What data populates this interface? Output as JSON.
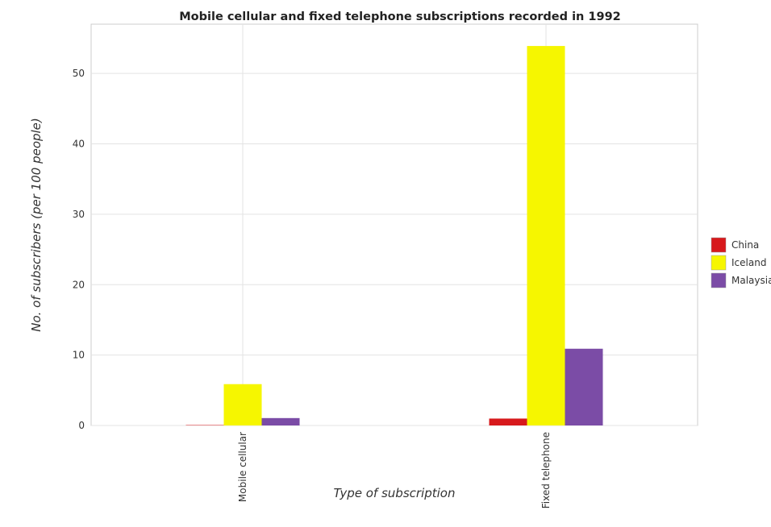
{
  "chart_data": {
    "type": "bar",
    "title": "Mobile cellular and fixed telephone subscriptions recorded in 1992",
    "xlabel": "Type of subscription",
    "ylabel": "No. of subscribers (per 100 people)",
    "categories": [
      "Mobile cellular",
      "Fixed telephone"
    ],
    "series": [
      {
        "name": "China",
        "color": "#d7191c",
        "values": [
          0.02,
          0.98
        ]
      },
      {
        "name": "Iceland",
        "color": "#f6f600",
        "values": [
          5.87,
          53.9
        ]
      },
      {
        "name": "Malaysia",
        "color": "#7b4ca6",
        "values": [
          1.05,
          10.9
        ]
      }
    ],
    "ylim": [
      0,
      57
    ],
    "yticks": [
      0,
      10,
      20,
      30,
      40,
      50
    ],
    "grid": true,
    "legend_position": "right"
  }
}
